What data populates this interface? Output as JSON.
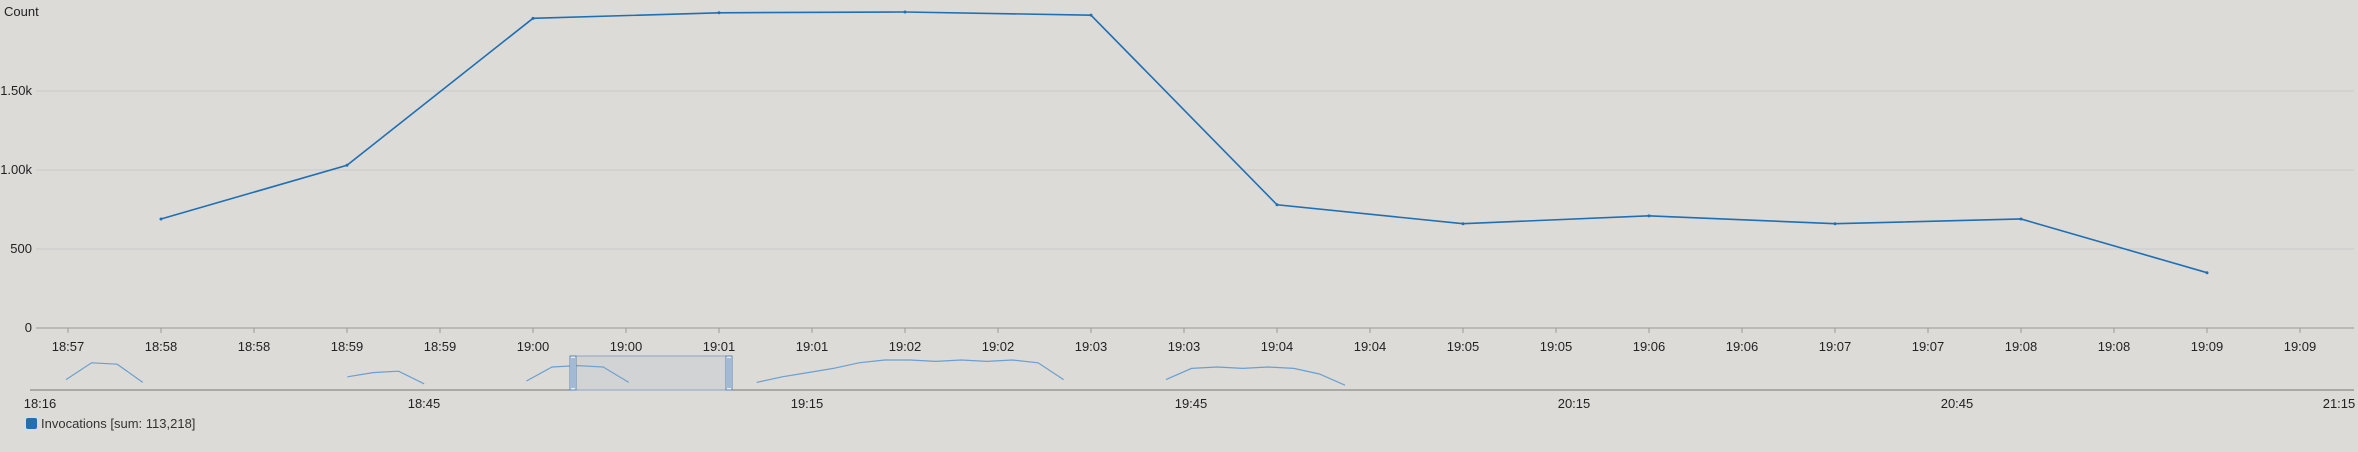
{
  "chart_data": {
    "type": "line",
    "ylabel": "Count",
    "ylim": [
      0,
      2000
    ],
    "y_ticks": [
      {
        "value": 0,
        "label": "0"
      },
      {
        "value": 500,
        "label": "500"
      },
      {
        "value": 1000,
        "label": "1.00k"
      },
      {
        "value": 1500,
        "label": "1.50k"
      }
    ],
    "x_tick_labels": [
      "18:57",
      "18:58",
      "18:58",
      "18:59",
      "18:59",
      "19:00",
      "19:00",
      "19:01",
      "19:01",
      "19:02",
      "19:02",
      "19:03",
      "19:03",
      "19:04",
      "19:04",
      "19:05",
      "19:05",
      "19:06",
      "19:06",
      "19:07",
      "19:07",
      "19:08",
      "19:08",
      "19:09",
      "19:09"
    ],
    "series": [
      {
        "name": "Invocations [sum: 113,218]",
        "color": "#1f6fb2",
        "x": [
          "18:58",
          "18:59",
          "19:00",
          "19:01",
          "19:02",
          "19:03",
          "19:04",
          "19:05",
          "19:06",
          "19:07",
          "19:08",
          "19:09"
        ],
        "values": [
          690,
          1030,
          1960,
          1995,
          2000,
          1980,
          780,
          660,
          710,
          660,
          690,
          350
        ]
      }
    ],
    "navigator": {
      "tick_labels": [
        "18:16",
        "18:45",
        "19:15",
        "19:45",
        "20:15",
        "20:45",
        "21:15"
      ],
      "overview_values": [
        0.3,
        0.9,
        0.85,
        0.2,
        null,
        null,
        null,
        null,
        null,
        null,
        null,
        0.4,
        0.55,
        0.6,
        0.15,
        null,
        null,
        null,
        0.25,
        0.75,
        0.8,
        0.75,
        0.2,
        null,
        null,
        null,
        null,
        0.2,
        0.4,
        0.55,
        0.7,
        0.9,
        1.0,
        1.0,
        0.95,
        1.0,
        0.95,
        1.0,
        0.9,
        0.3,
        null,
        null,
        null,
        0.3,
        0.7,
        0.75,
        0.7,
        0.75,
        0.7,
        0.5,
        0.1
      ]
    },
    "grid": true,
    "legend_position": "bottom-left"
  }
}
